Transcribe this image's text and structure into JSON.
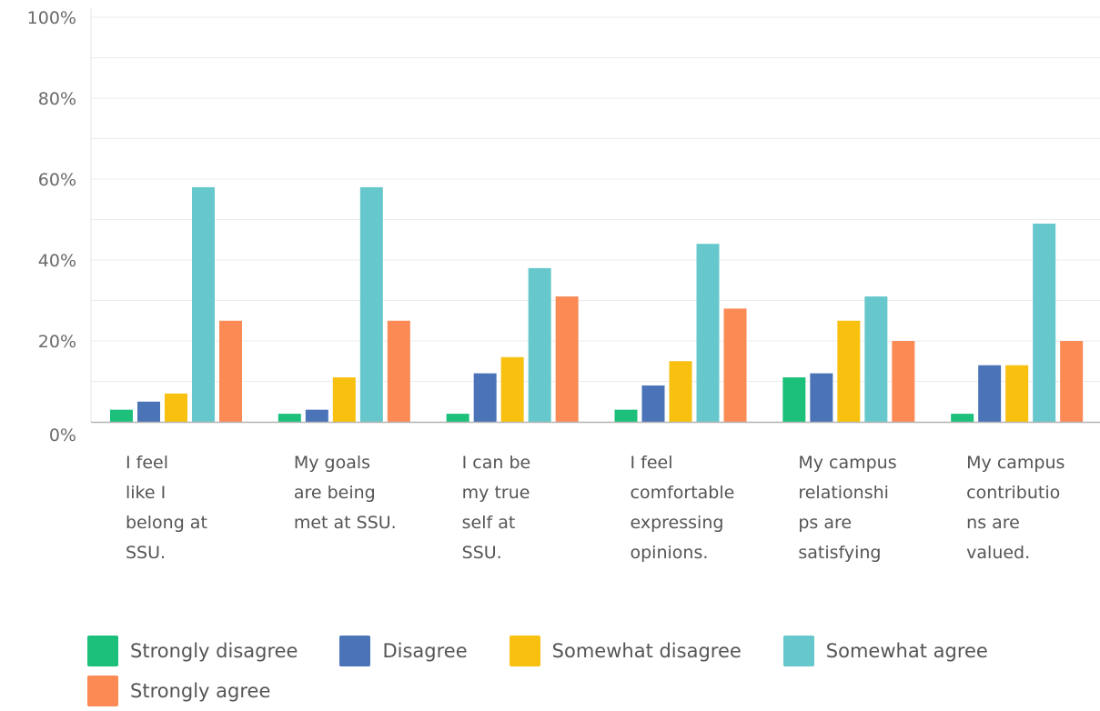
{
  "chart_data": {
    "type": "bar",
    "categories": [
      [
        "I feel",
        "like I",
        "belong at",
        "SSU."
      ],
      [
        "My goals",
        "are being",
        "met at SSU."
      ],
      [
        "I can be",
        "my true",
        "self at",
        "SSU."
      ],
      [
        "I feel",
        "comfortable",
        "expressing",
        "opinions."
      ],
      [
        "My campus",
        "relationshi",
        "ps are",
        "satisfying"
      ],
      [
        "My campus",
        "contributio",
        "ns are",
        "valued."
      ]
    ],
    "series": [
      {
        "name": "Strongly disagree",
        "color": "#1cc07a",
        "values": [
          3,
          2,
          2,
          3,
          11,
          2
        ]
      },
      {
        "name": "Disagree",
        "color": "#4a73b8",
        "values": [
          5,
          3,
          12,
          9,
          12,
          14
        ]
      },
      {
        "name": "Somewhat disagree",
        "color": "#f8c00f",
        "values": [
          7,
          11,
          16,
          15,
          25,
          14
        ]
      },
      {
        "name": "Somewhat agree",
        "color": "#66c8cc",
        "values": [
          58,
          58,
          38,
          44,
          31,
          49
        ]
      },
      {
        "name": "Strongly agree",
        "color": "#fb8a54",
        "values": [
          25,
          25,
          31,
          28,
          20,
          20
        ]
      }
    ],
    "ylim": [
      0,
      100
    ],
    "yticks": [
      "0%",
      "20%",
      "40%",
      "60%",
      "80%",
      "100%"
    ],
    "grid": true,
    "legend_position": "bottom"
  }
}
